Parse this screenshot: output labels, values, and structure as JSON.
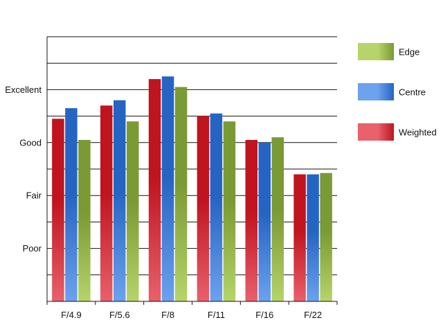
{
  "chart_data": {
    "type": "bar",
    "categories": [
      "F/4.9",
      "F/5.6",
      "F/8",
      "F/11",
      "F/16",
      "F/22"
    ],
    "y_tick_labels": [
      {
        "value": 2,
        "label": "Poor"
      },
      {
        "value": 4,
        "label": "Fair"
      },
      {
        "value": 6,
        "label": "Good"
      },
      {
        "value": 8,
        "label": "Excellent"
      }
    ],
    "ylim": [
      0,
      10
    ],
    "grid": true,
    "legend_position": "right",
    "series": [
      {
        "name": "Weighted",
        "color": "#c0141f",
        "color_light": "#e8616b",
        "values": [
          6.9,
          7.4,
          8.4,
          7.0,
          6.1,
          4.8
        ]
      },
      {
        "name": "Centre",
        "color": "#2664c4",
        "color_light": "#6ca2ee",
        "values": [
          7.3,
          7.6,
          8.5,
          7.1,
          6.0,
          4.8
        ]
      },
      {
        "name": "Edge",
        "color": "#7a9a35",
        "color_light": "#b7d46b",
        "values": [
          6.1,
          6.8,
          8.1,
          6.8,
          6.2,
          4.85
        ]
      }
    ],
    "legend_order": [
      "Edge",
      "Centre",
      "Weighted"
    ]
  }
}
